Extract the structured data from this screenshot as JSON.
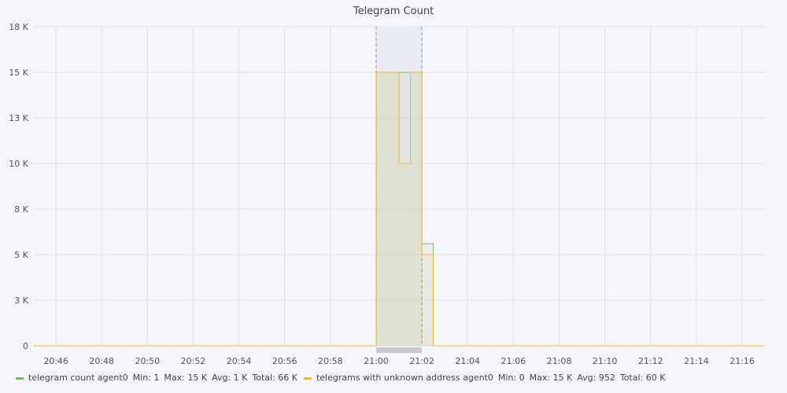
{
  "chart_data": {
    "type": "line",
    "title": "Telegram Count",
    "xlabel": "",
    "ylabel": "",
    "x_ticks": [
      "20:46",
      "20:48",
      "20:50",
      "20:52",
      "20:54",
      "20:56",
      "20:58",
      "21:00",
      "21:02",
      "21:04",
      "21:06",
      "21:08",
      "21:10",
      "21:12",
      "21:14",
      "21:16"
    ],
    "y_ticks": [
      {
        "value": 0,
        "label": "0"
      },
      {
        "value": 2500,
        "label": "3 K"
      },
      {
        "value": 5000,
        "label": "5 K"
      },
      {
        "value": 7500,
        "label": "8 K"
      },
      {
        "value": 10000,
        "label": "10 K"
      },
      {
        "value": 12500,
        "label": "13 K"
      },
      {
        "value": 15000,
        "label": "15 K"
      },
      {
        "value": 17500,
        "label": "18 K"
      }
    ],
    "xlim": [
      "20:45",
      "21:17"
    ],
    "ylim": [
      0,
      17500
    ],
    "grid": true,
    "legend_position": "bottom-left",
    "selection": {
      "start": "21:00",
      "end": "21:02"
    },
    "series": [
      {
        "name": "telegram count agent0",
        "color": "#7eb26d",
        "x": [
          "20:45",
          "21:00",
          "21:01",
          "21:01.5",
          "21:02",
          "21:02.5",
          "21:17"
        ],
        "values": [
          1,
          15000,
          15000,
          15000,
          5600,
          1,
          1
        ],
        "stats": {
          "min": "Min: 1",
          "max": "Max: 15 K",
          "avg": "Avg: 1 K",
          "total": "Total: 66 K"
        }
      },
      {
        "name": "telegrams with unknown address agent0",
        "color": "#eab839",
        "x": [
          "20:45",
          "21:00",
          "21:01",
          "21:01.5",
          "21:02",
          "21:02.5",
          "21:17"
        ],
        "values": [
          0,
          15000,
          10000,
          15000,
          5000,
          0,
          0
        ],
        "stats": {
          "min": "Min: 0",
          "max": "Max: 15 K",
          "avg": "Avg: 952",
          "total": "Total: 60 K"
        }
      }
    ]
  }
}
